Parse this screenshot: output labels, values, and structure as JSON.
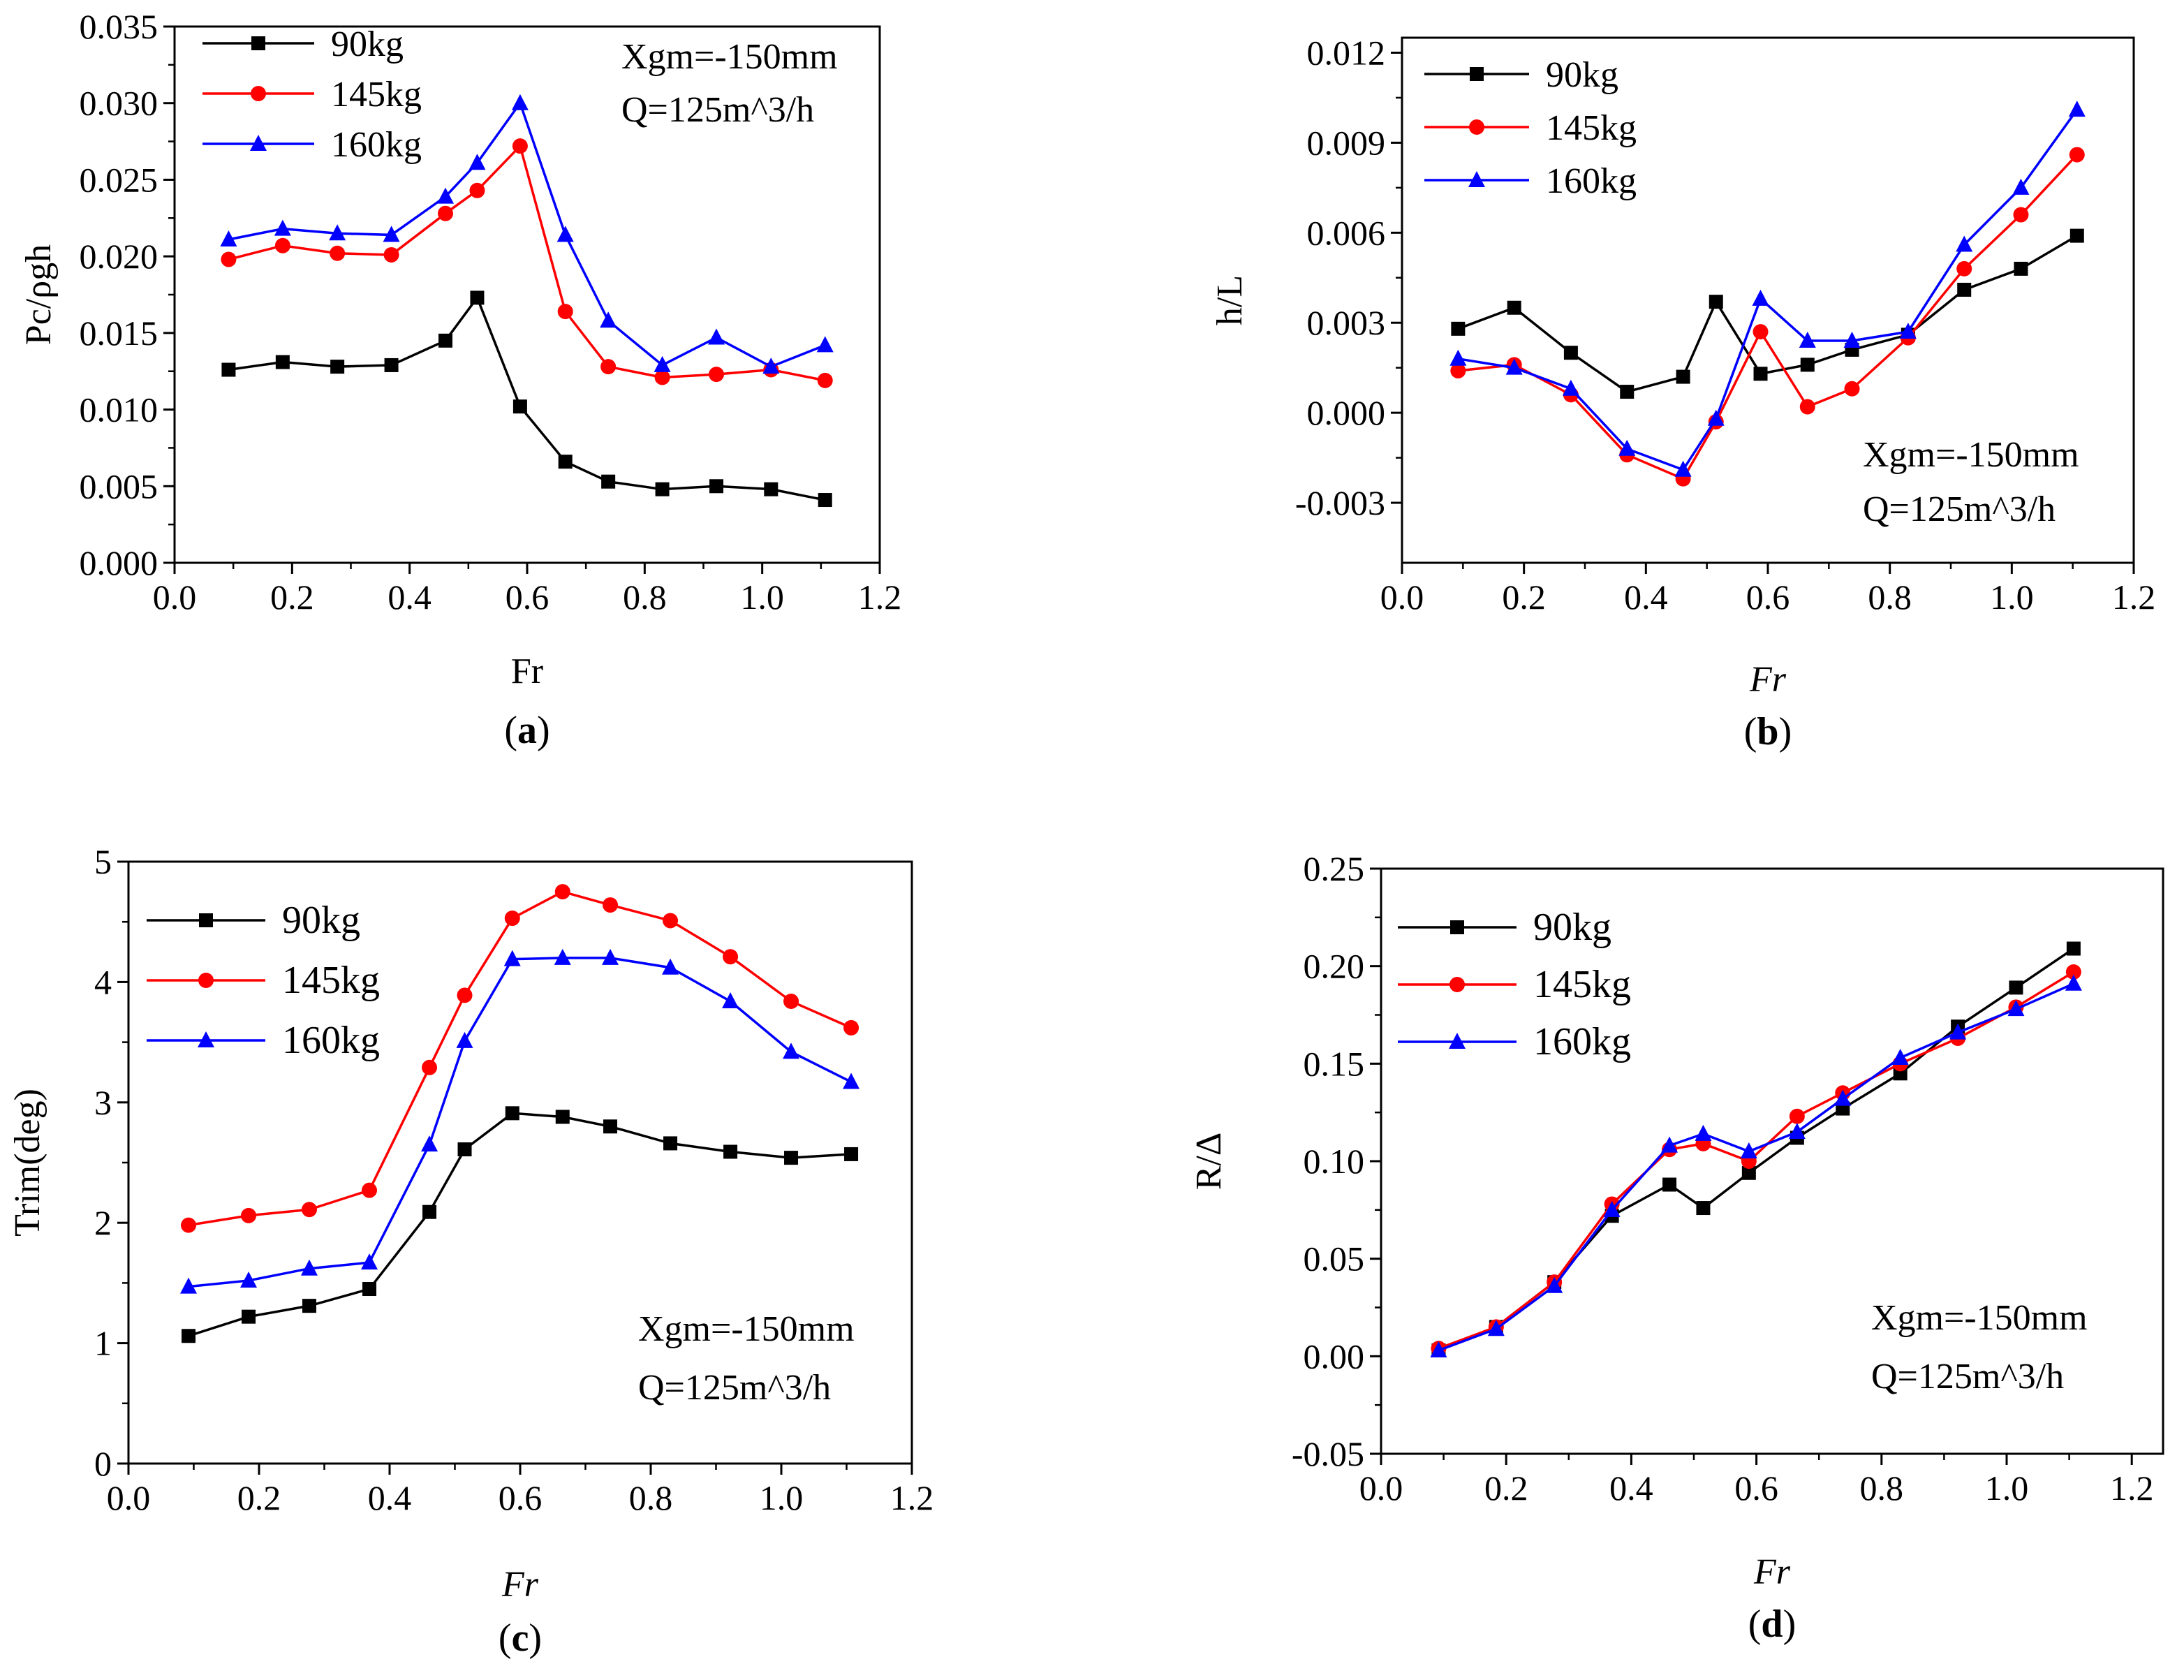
{
  "figure": {
    "legend_labels": [
      "90kg",
      "145kg",
      "160kg"
    ],
    "series_colors": {
      "90kg": "#000000",
      "145kg": "#ff0000",
      "160kg": "#0000ff"
    },
    "series_markers": {
      "90kg": "square",
      "145kg": "circle",
      "160kg": "triangle"
    }
  },
  "chart_data": [
    {
      "type": "line",
      "panel_label": "(a)",
      "panel_letter": "a",
      "xlabel": "Fr",
      "xlabel_italic": false,
      "ylabel": "Pc/ρgh",
      "xlim": [
        0.0,
        1.2
      ],
      "ylim": [
        0.0,
        0.035
      ],
      "xticks": [
        "0.0",
        "0.2",
        "0.4",
        "0.6",
        "0.8",
        "1.0",
        "1.2"
      ],
      "yticks": [
        "0.000",
        "0.005",
        "0.010",
        "0.015",
        "0.020",
        "0.025",
        "0.030",
        "0.035"
      ],
      "annotation": [
        "Xgm=-150mm",
        "Q=125m^3/h"
      ],
      "x": [
        0.092,
        0.184,
        0.277,
        0.369,
        0.461,
        0.515,
        0.588,
        0.665,
        0.738,
        0.83,
        0.922,
        1.015,
        1.107
      ],
      "series": [
        {
          "name": "90kg",
          "values": [
            0.0126,
            0.0131,
            0.0128,
            0.0129,
            0.0145,
            0.0173,
            0.0102,
            0.0066,
            0.0053,
            0.0048,
            0.005,
            0.0048,
            0.0041
          ]
        },
        {
          "name": "145kg",
          "values": [
            0.0198,
            0.0207,
            0.0202,
            0.0201,
            0.0228,
            0.0243,
            0.0272,
            0.0164,
            0.0128,
            0.0121,
            0.0123,
            0.0126,
            0.0119
          ]
        },
        {
          "name": "160kg",
          "values": [
            0.0211,
            0.0218,
            0.0215,
            0.0214,
            0.0239,
            0.0261,
            0.03,
            0.0214,
            0.0158,
            0.0129,
            0.0147,
            0.0128,
            0.0142
          ]
        }
      ]
    },
    {
      "type": "line",
      "panel_label": "(b)",
      "panel_letter": "b",
      "xlabel": "Fr",
      "xlabel_italic": true,
      "ylabel": "h/L",
      "xlim": [
        0.0,
        1.2
      ],
      "ylim": [
        -0.005,
        0.0125
      ],
      "xticks": [
        "0.0",
        "0.2",
        "0.4",
        "0.6",
        "0.8",
        "1.0",
        "1.2"
      ],
      "yticks": [
        "-0.003",
        "0.000",
        "0.003",
        "0.006",
        "0.009",
        "0.012"
      ],
      "annotation": [
        "Xgm=-150mm",
        "Q=125m^3/h"
      ],
      "x": [
        0.092,
        0.184,
        0.277,
        0.369,
        0.461,
        0.515,
        0.588,
        0.665,
        0.738,
        0.83,
        0.922,
        1.015,
        1.107
      ],
      "series": [
        {
          "name": "90kg",
          "values": [
            0.0028,
            0.0035,
            0.002,
            0.0007,
            0.0012,
            0.0037,
            0.0013,
            0.0016,
            0.0021,
            0.0026,
            0.0041,
            0.0048,
            0.0059
          ]
        },
        {
          "name": "145kg",
          "values": [
            0.0014,
            0.0016,
            0.0006,
            -0.0014,
            -0.0022,
            -0.0003,
            0.0027,
            0.0002,
            0.0008,
            0.0025,
            0.0048,
            0.0066,
            0.0086
          ]
        },
        {
          "name": "160kg",
          "values": [
            0.0018,
            0.0015,
            0.0008,
            -0.0012,
            -0.0019,
            -0.0002,
            0.0038,
            0.0024,
            0.0024,
            0.0027,
            0.0056,
            0.0075,
            0.0101
          ]
        }
      ]
    },
    {
      "type": "line",
      "panel_label": "(c)",
      "panel_letter": "c",
      "xlabel": "Fr",
      "xlabel_italic": true,
      "ylabel": "Trim(deg)",
      "xlim": [
        0.0,
        1.2
      ],
      "ylim": [
        0,
        5
      ],
      "xticks": [
        "0.0",
        "0.2",
        "0.4",
        "0.6",
        "0.8",
        "1.0",
        "1.2"
      ],
      "yticks": [
        "0",
        "1",
        "2",
        "3",
        "4",
        "5"
      ],
      "annotation": [
        "Xgm=-150mm",
        "Q=125m^3/h"
      ],
      "x": [
        0.092,
        0.184,
        0.277,
        0.369,
        0.461,
        0.515,
        0.588,
        0.665,
        0.738,
        0.83,
        0.922,
        1.015,
        1.107
      ],
      "series": [
        {
          "name": "90kg",
          "values": [
            1.06,
            1.22,
            1.31,
            1.45,
            2.09,
            2.61,
            2.91,
            2.88,
            2.8,
            2.66,
            2.59,
            2.54,
            2.57
          ]
        },
        {
          "name": "145kg",
          "values": [
            1.98,
            2.06,
            2.11,
            2.27,
            3.29,
            3.89,
            4.53,
            4.75,
            4.64,
            4.51,
            4.21,
            3.84,
            3.62
          ]
        },
        {
          "name": "160kg",
          "values": [
            1.47,
            1.52,
            1.62,
            1.67,
            2.65,
            3.51,
            4.19,
            4.2,
            4.2,
            4.12,
            3.84,
            3.42,
            3.17
          ]
        }
      ]
    },
    {
      "type": "line",
      "panel_label": "(d)",
      "panel_letter": "d",
      "xlabel": "Fr",
      "xlabel_italic": true,
      "ylabel": "R/Δ",
      "xlim": [
        0.0,
        1.25
      ],
      "ylim": [
        -0.05,
        0.25
      ],
      "xticks": [
        "0.0",
        "0.2",
        "0.4",
        "0.6",
        "0.8",
        "1.0",
        "1.2"
      ],
      "yticks": [
        "-0.05",
        "0.00",
        "0.05",
        "0.10",
        "0.15",
        "0.20",
        "0.25"
      ],
      "annotation": [
        "Xgm=-150mm",
        "Q=125m^3/h"
      ],
      "x": [
        0.092,
        0.184,
        0.277,
        0.369,
        0.461,
        0.515,
        0.588,
        0.665,
        0.738,
        0.83,
        0.922,
        1.015,
        1.107
      ],
      "series": [
        {
          "name": "90kg",
          "values": [
            0.003,
            0.015,
            0.038,
            0.072,
            0.088,
            0.076,
            0.094,
            0.112,
            0.127,
            0.145,
            0.169,
            0.189,
            0.209
          ]
        },
        {
          "name": "145kg",
          "values": [
            0.004,
            0.015,
            0.038,
            0.078,
            0.106,
            0.109,
            0.1,
            0.123,
            0.135,
            0.15,
            0.163,
            0.179,
            0.197
          ]
        },
        {
          "name": "160kg",
          "values": [
            0.003,
            0.014,
            0.036,
            0.075,
            0.108,
            0.114,
            0.105,
            0.115,
            0.132,
            0.153,
            0.166,
            0.178,
            0.191
          ]
        }
      ]
    }
  ]
}
